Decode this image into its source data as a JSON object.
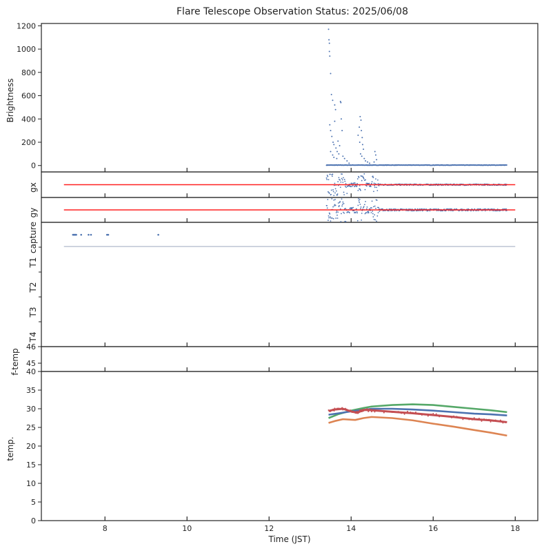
{
  "chart_data": {
    "type": "scatter",
    "title": "Flare Telescope Observation Status: 2025/06/08",
    "xlabel": "Time (JST)",
    "xlim": [
      6.45,
      18.55
    ],
    "xticks": [
      8,
      10,
      12,
      14,
      16,
      18
    ],
    "colors": {
      "blue": "#4c72b0",
      "red": "#ff2020",
      "green": "#55a868",
      "tred": "#c44e52",
      "orange": "#dd8452",
      "grey": "#7a8aa8"
    },
    "panels": {
      "brightness": {
        "ylabel": "Brightness",
        "ylim": [
          -55,
          1220
        ],
        "yticks": [
          0,
          200,
          400,
          600,
          800,
          1000,
          1200
        ],
        "points": [
          [
            13.45,
            1170
          ],
          [
            13.46,
            1080
          ],
          [
            13.47,
            1050
          ],
          [
            13.47,
            980
          ],
          [
            13.48,
            940
          ],
          [
            13.5,
            790
          ],
          [
            13.52,
            610
          ],
          [
            13.55,
            560
          ],
          [
            13.6,
            520
          ],
          [
            13.62,
            480
          ],
          [
            13.48,
            350
          ],
          [
            13.5,
            300
          ],
          [
            13.53,
            250
          ],
          [
            13.56,
            200
          ],
          [
            13.58,
            180
          ],
          [
            13.6,
            380
          ],
          [
            13.63,
            150
          ],
          [
            13.66,
            120
          ],
          [
            13.7,
            100
          ],
          [
            13.74,
            550
          ],
          [
            13.75,
            540
          ],
          [
            13.76,
            400
          ],
          [
            13.78,
            300
          ],
          [
            13.8,
            80
          ],
          [
            13.84,
            60
          ],
          [
            13.9,
            40
          ],
          [
            13.95,
            20
          ],
          [
            13.5,
            120
          ],
          [
            13.55,
            90
          ],
          [
            13.58,
            70
          ],
          [
            13.65,
            60
          ],
          [
            13.68,
            210
          ],
          [
            13.72,
            170
          ],
          [
            14.17,
            260
          ],
          [
            14.2,
            330
          ],
          [
            14.22,
            420
          ],
          [
            14.24,
            390
          ],
          [
            14.25,
            300
          ],
          [
            14.27,
            240
          ],
          [
            14.28,
            180
          ],
          [
            14.3,
            140
          ],
          [
            14.21,
            200
          ],
          [
            14.23,
            100
          ],
          [
            14.26,
            80
          ],
          [
            14.32,
            60
          ],
          [
            14.35,
            40
          ],
          [
            14.4,
            30
          ],
          [
            14.45,
            20
          ],
          [
            14.58,
            120
          ],
          [
            14.6,
            90
          ],
          [
            14.62,
            50
          ],
          [
            14.56,
            30
          ]
        ],
        "baseline": {
          "from": 13.4,
          "to": 17.8,
          "value": 2
        }
      },
      "gx": {
        "ylabel": "gx",
        "ylim": [
          -1,
          1
        ],
        "reference": {
          "from": 7.0,
          "to": 18.0,
          "value": 0
        },
        "scatter_range": {
          "from": 13.4,
          "to": 17.8,
          "spread_active": 0.9,
          "spread_quiet": 0.05,
          "active_until": 14.7
        }
      },
      "gy": {
        "ylabel": "gy",
        "ylim": [
          -1,
          1
        ],
        "reference": {
          "from": 7.0,
          "to": 18.0,
          "value": 0
        },
        "scatter_range": {
          "from": 13.4,
          "to": 17.8,
          "spread_active": 0.95,
          "spread_quiet": 0.08,
          "active_until": 14.7
        }
      },
      "status": {
        "labels": [
          "capture",
          "T1",
          "T2",
          "T3",
          "T4"
        ],
        "capture_points": [
          7.22,
          7.24,
          7.26,
          7.28,
          7.3,
          7.42,
          7.6,
          7.66,
          8.05,
          8.08,
          9.3
        ],
        "line": {
          "from": 7.0,
          "to": 18.0
        }
      },
      "ftemp": {
        "ylabel": "f-temp",
        "ylim": [
          44.5,
          46
        ],
        "yticks": [
          45,
          46
        ]
      },
      "temp": {
        "ylabel": "temp.",
        "ylim": [
          0,
          40
        ],
        "yticks": [
          0,
          5,
          10,
          15,
          20,
          25,
          30,
          35,
          40
        ],
        "series": [
          {
            "name": "green",
            "points": [
              [
                13.45,
                27.5
              ],
              [
                13.7,
                28.6
              ],
              [
                14.0,
                29.5
              ],
              [
                14.3,
                30.2
              ],
              [
                14.5,
                30.6
              ],
              [
                15.0,
                31.0
              ],
              [
                15.5,
                31.2
              ],
              [
                16.0,
                31.0
              ],
              [
                16.5,
                30.5
              ],
              [
                17.0,
                30.0
              ],
              [
                17.4,
                29.6
              ],
              [
                17.8,
                29.1
              ]
            ]
          },
          {
            "name": "blue",
            "points": [
              [
                13.45,
                28.4
              ],
              [
                13.7,
                28.8
              ],
              [
                14.0,
                29.3
              ],
              [
                14.3,
                29.7
              ],
              [
                14.5,
                30.0
              ],
              [
                15.0,
                30.0
              ],
              [
                15.5,
                29.8
              ],
              [
                16.0,
                29.5
              ],
              [
                16.5,
                29.1
              ],
              [
                17.0,
                28.7
              ],
              [
                17.4,
                28.5
              ],
              [
                17.8,
                28.2
              ]
            ]
          },
          {
            "name": "tred",
            "points": [
              [
                13.45,
                29.4
              ],
              [
                13.6,
                29.8
              ],
              [
                13.8,
                30.0
              ],
              [
                14.0,
                29.3
              ],
              [
                14.15,
                28.9
              ],
              [
                14.3,
                29.7
              ],
              [
                14.5,
                29.6
              ],
              [
                15.0,
                29.2
              ],
              [
                15.5,
                28.8
              ],
              [
                16.0,
                28.3
              ],
              [
                16.5,
                27.8
              ],
              [
                17.0,
                27.2
              ],
              [
                17.4,
                26.9
              ],
              [
                17.8,
                26.4
              ]
            ]
          },
          {
            "name": "orange",
            "points": [
              [
                13.45,
                26.2
              ],
              [
                13.6,
                26.7
              ],
              [
                13.8,
                27.2
              ],
              [
                14.1,
                27.0
              ],
              [
                14.3,
                27.5
              ],
              [
                14.5,
                27.8
              ],
              [
                15.0,
                27.5
              ],
              [
                15.5,
                26.9
              ],
              [
                16.0,
                26.0
              ],
              [
                16.5,
                25.2
              ],
              [
                17.0,
                24.3
              ],
              [
                17.4,
                23.6
              ],
              [
                17.8,
                22.8
              ]
            ]
          }
        ]
      }
    }
  }
}
